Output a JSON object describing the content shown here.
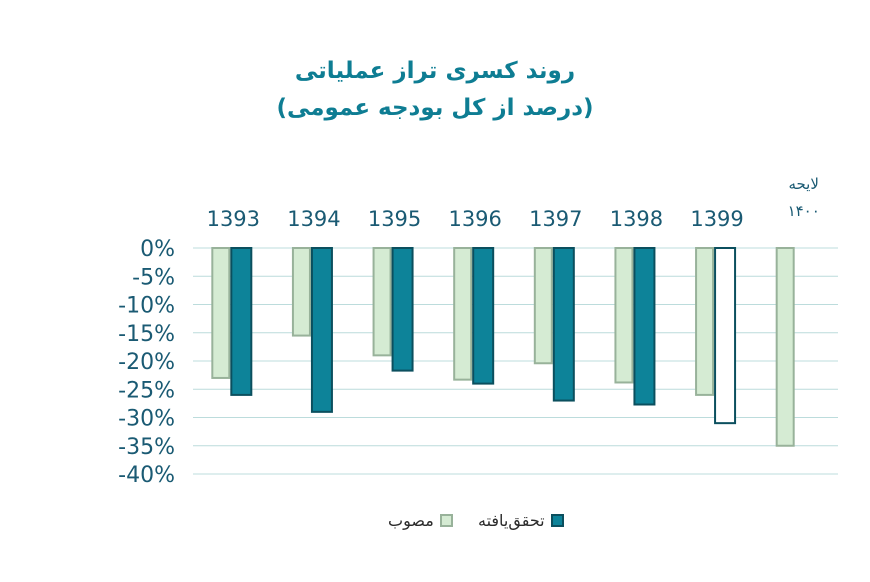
{
  "title": "روند کسری تراز عملیاتی",
  "subtitle": "(درصد از کل بودجه عمومی)",
  "chart_data": {
    "type": "bar",
    "title": "روند کسری تراز عملیاتی",
    "subtitle": "(درصد از کل بودجه عمومی)",
    "categories": [
      "1393",
      "1394",
      "1395",
      "1396",
      "1397",
      "1398",
      "1399",
      "لایحه ۱۴۰۰"
    ],
    "category_lines": [
      [
        "1393"
      ],
      [
        "1394"
      ],
      [
        "1395"
      ],
      [
        "1396"
      ],
      [
        "1397"
      ],
      [
        "1398"
      ],
      [
        "1399"
      ],
      [
        "لایحه",
        "۱۴۰۰"
      ]
    ],
    "ylim": [
      -40,
      0
    ],
    "yticks": [
      0,
      -5,
      -10,
      -15,
      -20,
      -25,
      -30,
      -35,
      -40
    ],
    "ytick_labels": [
      "0%",
      "-5%",
      "-10%",
      "-15%",
      "-20%",
      "-25%",
      "-30%",
      "-35%",
      "-40%"
    ],
    "grid": true,
    "legend_position": "bottom",
    "series": [
      {
        "name": "مصوب",
        "color": "#d5ebd3",
        "border": "#98b29a",
        "values": [
          -23,
          -15.5,
          -19,
          -23.3,
          -20.4,
          -23.8,
          -26,
          -35
        ]
      },
      {
        "name": "تحقق‌یافته",
        "color": "#0d8399",
        "border": "#0b4f5e",
        "values": [
          -26,
          -29,
          -21.7,
          -24,
          -27,
          -27.7,
          -31,
          null
        ],
        "hollow_index": 6
      }
    ]
  }
}
